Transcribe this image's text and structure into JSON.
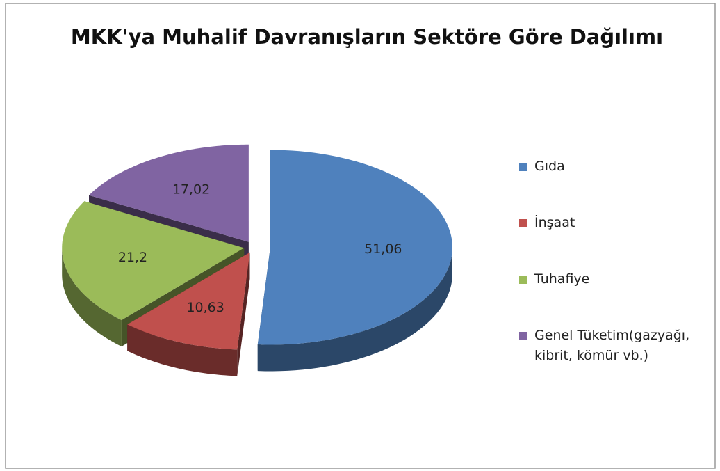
{
  "chart_data": {
    "type": "pie",
    "title": "MKK'ya Muhalif Davranışların Sektöre Göre Dağılımı",
    "categories": [
      "Gıda",
      "İnşaat",
      "Tuhafiye",
      "Genel Tüketim(gazyağı, kibrit, kömür vb.)"
    ],
    "values": [
      51.06,
      10.63,
      21.2,
      17.02
    ],
    "value_labels": [
      "51,06",
      "10,63",
      "21,2",
      "17,02"
    ],
    "colors": [
      "#4f81bd",
      "#c0504d",
      "#9bbb59",
      "#8064a2"
    ],
    "legend": "right"
  }
}
